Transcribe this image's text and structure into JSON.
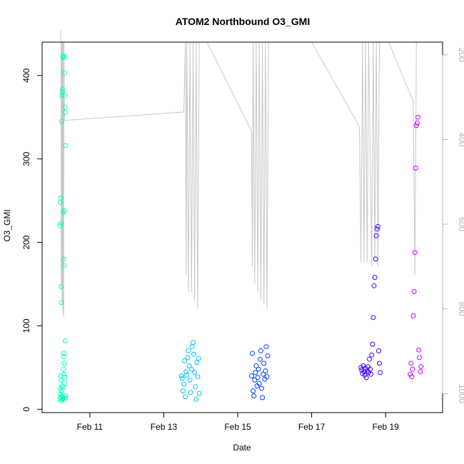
{
  "chart_data": {
    "type": "scatter",
    "title": "ATOM2 Northbound O3_GMI",
    "xlabel": "Date",
    "ylabel": "O3_GMI",
    "xlim": [
      "2017-02-09T17:00",
      "2017-02-20T13:00"
    ],
    "ylim": [
      -4,
      440
    ],
    "x_ticks": [
      {
        "value": "2017-02-11",
        "label": "Feb 11"
      },
      {
        "value": "2017-02-13",
        "label": "Feb 13"
      },
      {
        "value": "2017-02-15",
        "label": "Feb 15"
      },
      {
        "value": "2017-02-17",
        "label": "Feb 17"
      },
      {
        "value": "2017-02-19",
        "label": "Feb 19"
      }
    ],
    "y_ticks": [
      0,
      100,
      200,
      300,
      400
    ],
    "right_axis": {
      "reversed": true,
      "color": "#b3b3b3",
      "ylim": [
        1045,
        170
      ],
      "ticks": [
        200,
        400,
        600,
        800,
        1000
      ]
    },
    "grid": false,
    "series": [
      {
        "color": "#00ffbf",
        "points": [
          {
            "x": "2017-02-10T04:30",
            "y": 12
          },
          {
            "x": "2017-02-10T04:40",
            "y": 18
          },
          {
            "x": "2017-02-10T04:50",
            "y": 25
          },
          {
            "x": "2017-02-10T05:00",
            "y": 40
          },
          {
            "x": "2017-02-10T05:10",
            "y": 35
          },
          {
            "x": "2017-02-10T05:20",
            "y": 14
          },
          {
            "x": "2017-02-10T05:30",
            "y": 10
          },
          {
            "x": "2017-02-10T05:40",
            "y": 22
          },
          {
            "x": "2017-02-10T05:50",
            "y": 16
          },
          {
            "x": "2017-02-10T06:00",
            "y": 28
          },
          {
            "x": "2017-02-10T04:45",
            "y": 220
          },
          {
            "x": "2017-02-10T04:55",
            "y": 248
          },
          {
            "x": "2017-02-10T05:05",
            "y": 253
          },
          {
            "x": "2017-02-10T05:15",
            "y": 223
          },
          {
            "x": "2017-02-10T05:25",
            "y": 147
          },
          {
            "x": "2017-02-10T05:35",
            "y": 128
          },
          {
            "x": "2017-02-10T05:45",
            "y": 345
          },
          {
            "x": "2017-02-10T05:55",
            "y": 376
          },
          {
            "x": "2017-02-10T06:05",
            "y": 380
          },
          {
            "x": "2017-02-10T06:15",
            "y": 384
          },
          {
            "x": "2017-02-10T06:25",
            "y": 422
          },
          {
            "x": "2017-02-10T06:35",
            "y": 424
          },
          {
            "x": "2017-02-10T06:45",
            "y": 236
          },
          {
            "x": "2017-02-10T06:55",
            "y": 180
          },
          {
            "x": "2017-02-10T07:05",
            "y": 172
          },
          {
            "x": "2017-02-10T07:15",
            "y": 238
          },
          {
            "x": "2017-02-10T07:25",
            "y": 422
          },
          {
            "x": "2017-02-10T07:35",
            "y": 403
          },
          {
            "x": "2017-02-10T07:45",
            "y": 376
          },
          {
            "x": "2017-02-10T07:55",
            "y": 362
          },
          {
            "x": "2017-02-10T08:05",
            "y": 356
          },
          {
            "x": "2017-02-10T08:15",
            "y": 316
          },
          {
            "x": "2017-02-10T06:10",
            "y": 12
          },
          {
            "x": "2017-02-10T06:20",
            "y": 15
          },
          {
            "x": "2017-02-10T06:30",
            "y": 13
          },
          {
            "x": "2017-02-10T06:40",
            "y": 26
          },
          {
            "x": "2017-02-10T06:50",
            "y": 48
          },
          {
            "x": "2017-02-10T07:00",
            "y": 63
          },
          {
            "x": "2017-02-10T07:10",
            "y": 67
          },
          {
            "x": "2017-02-10T07:20",
            "y": 42
          },
          {
            "x": "2017-02-10T07:30",
            "y": 55
          },
          {
            "x": "2017-02-10T07:40",
            "y": 38
          },
          {
            "x": "2017-02-10T07:50",
            "y": 31
          },
          {
            "x": "2017-02-10T08:00",
            "y": 82
          },
          {
            "x": "2017-02-10T08:10",
            "y": 13
          },
          {
            "x": "2017-02-10T08:20",
            "y": 16
          }
        ]
      },
      {
        "color": "#00bfff",
        "points": [
          {
            "x": "2017-02-13T11:30",
            "y": 40
          },
          {
            "x": "2017-02-13T12:00",
            "y": 37
          },
          {
            "x": "2017-02-13T12:30",
            "y": 22
          },
          {
            "x": "2017-02-13T13:00",
            "y": 30
          },
          {
            "x": "2017-02-13T13:30",
            "y": 58
          },
          {
            "x": "2017-02-13T14:00",
            "y": 15
          },
          {
            "x": "2017-02-13T14:30",
            "y": 45
          },
          {
            "x": "2017-02-13T15:00",
            "y": 41
          },
          {
            "x": "2017-02-13T15:30",
            "y": 62
          },
          {
            "x": "2017-02-13T16:00",
            "y": 70
          },
          {
            "x": "2017-02-13T16:30",
            "y": 52
          },
          {
            "x": "2017-02-13T17:00",
            "y": 35
          },
          {
            "x": "2017-02-13T17:30",
            "y": 20
          },
          {
            "x": "2017-02-13T18:00",
            "y": 48
          },
          {
            "x": "2017-02-13T18:30",
            "y": 75
          },
          {
            "x": "2017-02-13T19:00",
            "y": 80
          },
          {
            "x": "2017-02-13T19:30",
            "y": 66
          },
          {
            "x": "2017-02-13T20:00",
            "y": 44
          },
          {
            "x": "2017-02-13T20:30",
            "y": 27
          },
          {
            "x": "2017-02-13T21:00",
            "y": 12
          },
          {
            "x": "2017-02-13T21:30",
            "y": 56
          },
          {
            "x": "2017-02-13T22:00",
            "y": 39
          },
          {
            "x": "2017-02-13T22:30",
            "y": 61
          },
          {
            "x": "2017-02-13T23:00",
            "y": 19
          }
        ]
      },
      {
        "color": "#003fff",
        "points": [
          {
            "x": "2017-02-15T09:00",
            "y": 40
          },
          {
            "x": "2017-02-15T09:30",
            "y": 67
          },
          {
            "x": "2017-02-15T10:00",
            "y": 22
          },
          {
            "x": "2017-02-15T10:30",
            "y": 16
          },
          {
            "x": "2017-02-15T11:00",
            "y": 35
          },
          {
            "x": "2017-02-15T11:30",
            "y": 44
          },
          {
            "x": "2017-02-15T12:00",
            "y": 52
          },
          {
            "x": "2017-02-15T12:30",
            "y": 28
          },
          {
            "x": "2017-02-15T13:00",
            "y": 38
          },
          {
            "x": "2017-02-15T13:30",
            "y": 48
          },
          {
            "x": "2017-02-15T14:00",
            "y": 31
          },
          {
            "x": "2017-02-15T14:30",
            "y": 60
          },
          {
            "x": "2017-02-15T15:00",
            "y": 70
          },
          {
            "x": "2017-02-15T15:30",
            "y": 25
          },
          {
            "x": "2017-02-15T16:00",
            "y": 14
          },
          {
            "x": "2017-02-15T16:30",
            "y": 42
          },
          {
            "x": "2017-02-15T17:00",
            "y": 55
          },
          {
            "x": "2017-02-15T17:30",
            "y": 36
          },
          {
            "x": "2017-02-15T18:00",
            "y": 46
          },
          {
            "x": "2017-02-15T18:30",
            "y": 75
          },
          {
            "x": "2017-02-15T19:00",
            "y": 39
          },
          {
            "x": "2017-02-15T19:30",
            "y": 64
          }
        ]
      },
      {
        "color": "#3f00ff",
        "points": [
          {
            "x": "2017-02-18T08:00",
            "y": 50
          },
          {
            "x": "2017-02-18T08:30",
            "y": 47
          },
          {
            "x": "2017-02-18T09:00",
            "y": 43
          },
          {
            "x": "2017-02-18T09:30",
            "y": 52
          },
          {
            "x": "2017-02-18T10:00",
            "y": 45
          },
          {
            "x": "2017-02-18T10:30",
            "y": 41
          },
          {
            "x": "2017-02-18T11:00",
            "y": 49
          },
          {
            "x": "2017-02-18T11:30",
            "y": 38
          },
          {
            "x": "2017-02-18T12:00",
            "y": 46
          },
          {
            "x": "2017-02-18T12:30",
            "y": 51
          },
          {
            "x": "2017-02-18T13:00",
            "y": 44
          },
          {
            "x": "2017-02-18T13:30",
            "y": 60
          },
          {
            "x": "2017-02-18T14:00",
            "y": 48
          },
          {
            "x": "2017-02-18T14:30",
            "y": 42
          },
          {
            "x": "2017-02-18T15:00",
            "y": 65
          },
          {
            "x": "2017-02-18T15:30",
            "y": 78
          },
          {
            "x": "2017-02-18T16:00",
            "y": 110
          },
          {
            "x": "2017-02-18T16:30",
            "y": 148
          },
          {
            "x": "2017-02-18T17:00",
            "y": 158
          },
          {
            "x": "2017-02-18T17:30",
            "y": 180
          },
          {
            "x": "2017-02-18T18:00",
            "y": 208
          },
          {
            "x": "2017-02-18T18:30",
            "y": 216
          },
          {
            "x": "2017-02-18T19:00",
            "y": 219
          },
          {
            "x": "2017-02-18T19:30",
            "y": 70
          },
          {
            "x": "2017-02-18T20:00",
            "y": 55
          },
          {
            "x": "2017-02-18T20:30",
            "y": 44
          }
        ]
      },
      {
        "color": "#bf00ff",
        "points": [
          {
            "x": "2017-02-19T16:00",
            "y": 42
          },
          {
            "x": "2017-02-19T16:30",
            "y": 55
          },
          {
            "x": "2017-02-19T17:00",
            "y": 39
          },
          {
            "x": "2017-02-19T17:30",
            "y": 48
          },
          {
            "x": "2017-02-19T18:00",
            "y": 112
          },
          {
            "x": "2017-02-19T18:30",
            "y": 141
          },
          {
            "x": "2017-02-19T19:00",
            "y": 188
          },
          {
            "x": "2017-02-19T19:30",
            "y": 289
          },
          {
            "x": "2017-02-19T20:00",
            "y": 340
          },
          {
            "x": "2017-02-19T20:30",
            "y": 343
          },
          {
            "x": "2017-02-19T21:00",
            "y": 350
          },
          {
            "x": "2017-02-19T21:30",
            "y": 71
          },
          {
            "x": "2017-02-19T22:00",
            "y": 62
          },
          {
            "x": "2017-02-19T22:30",
            "y": 45
          },
          {
            "x": "2017-02-19T23:00",
            "y": 51
          }
        ]
      }
    ],
    "profile_lines": {
      "color": "#c8c8c8",
      "points": [
        {
          "x": "2017-02-10T05:00",
          "y": 140
        },
        {
          "x": "2017-02-10T05:15",
          "y": 170
        },
        {
          "x": "2017-02-10T05:25",
          "y": 750
        },
        {
          "x": "2017-02-10T05:40",
          "y": 170
        },
        {
          "x": "2017-02-10T05:55",
          "y": 790
        },
        {
          "x": "2017-02-10T06:10",
          "y": 170
        },
        {
          "x": "2017-02-10T06:30",
          "y": 810
        },
        {
          "x": "2017-02-10T06:45",
          "y": 170
        },
        {
          "x": "2017-02-10T07:00",
          "y": 820
        },
        {
          "x": "2017-02-10T07:10",
          "y": 170
        },
        {
          "x": "2017-02-10T07:30",
          "y": 355
        },
        {
          "x": "2017-02-13T13:00",
          "y": 335
        },
        {
          "x": "2017-02-13T14:00",
          "y": 170
        },
        {
          "x": "2017-02-13T14:30",
          "y": 720
        },
        {
          "x": "2017-02-13T15:00",
          "y": 170
        },
        {
          "x": "2017-02-13T16:00",
          "y": 760
        },
        {
          "x": "2017-02-13T17:00",
          "y": 170
        },
        {
          "x": "2017-02-13T18:00",
          "y": 760
        },
        {
          "x": "2017-02-13T19:00",
          "y": 170
        },
        {
          "x": "2017-02-13T20:00",
          "y": 780
        },
        {
          "x": "2017-02-13T21:00",
          "y": 170
        },
        {
          "x": "2017-02-13T22:00",
          "y": 800
        },
        {
          "x": "2017-02-13T23:00",
          "y": 170
        },
        {
          "x": "2017-02-14T04:00",
          "y": 170
        },
        {
          "x": "2017-02-15T09:00",
          "y": 380
        },
        {
          "x": "2017-02-15T09:30",
          "y": 700
        },
        {
          "x": "2017-02-15T10:00",
          "y": 170
        },
        {
          "x": "2017-02-15T11:00",
          "y": 740
        },
        {
          "x": "2017-02-15T12:00",
          "y": 170
        },
        {
          "x": "2017-02-15T13:00",
          "y": 760
        },
        {
          "x": "2017-02-15T14:00",
          "y": 170
        },
        {
          "x": "2017-02-15T15:00",
          "y": 780
        },
        {
          "x": "2017-02-15T16:00",
          "y": 170
        },
        {
          "x": "2017-02-15T17:00",
          "y": 790
        },
        {
          "x": "2017-02-15T18:00",
          "y": 170
        },
        {
          "x": "2017-02-15T19:00",
          "y": 800
        },
        {
          "x": "2017-02-15T20:00",
          "y": 170
        },
        {
          "x": "2017-02-17T00:00",
          "y": 170
        },
        {
          "x": "2017-02-18T07:00",
          "y": 370
        },
        {
          "x": "2017-02-18T08:00",
          "y": 690
        },
        {
          "x": "2017-02-18T09:00",
          "y": 170
        },
        {
          "x": "2017-02-18T10:00",
          "y": 690
        },
        {
          "x": "2017-02-18T11:00",
          "y": 170
        },
        {
          "x": "2017-02-18T12:00",
          "y": 690
        },
        {
          "x": "2017-02-18T13:00",
          "y": 170
        },
        {
          "x": "2017-02-18T15:00",
          "y": 700
        },
        {
          "x": "2017-02-18T16:00",
          "y": 170
        },
        {
          "x": "2017-02-18T17:00",
          "y": 680
        },
        {
          "x": "2017-02-18T18:00",
          "y": 170
        },
        {
          "x": "2017-02-18T19:00",
          "y": 700
        },
        {
          "x": "2017-02-18T20:00",
          "y": 170
        },
        {
          "x": "2017-02-19T02:00",
          "y": 170
        },
        {
          "x": "2017-02-19T18:00",
          "y": 310
        },
        {
          "x": "2017-02-19T19:00",
          "y": 720
        },
        {
          "x": "2017-02-19T20:00",
          "y": 170
        }
      ]
    }
  }
}
